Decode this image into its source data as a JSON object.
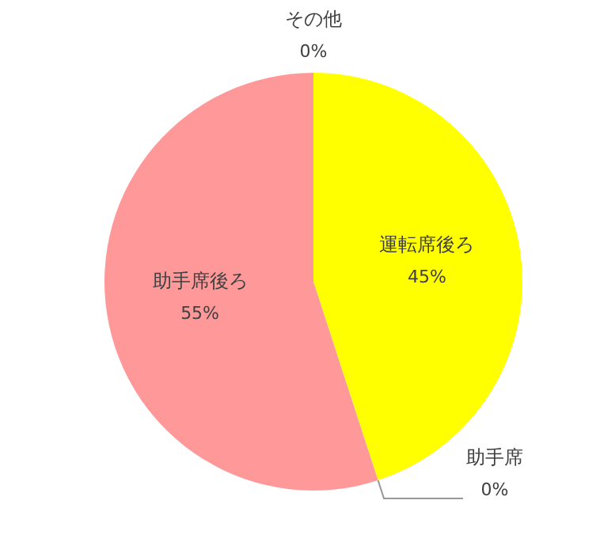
{
  "chart_data": {
    "type": "pie",
    "categories": [
      "運転席後ろ",
      "助手席",
      "助手席後ろ",
      "その他"
    ],
    "values": [
      45,
      0,
      55,
      0
    ],
    "colors": [
      "#ffff00",
      "#a5a5a5",
      "#ff9999",
      "#70ad47"
    ],
    "value_labels": [
      "45%",
      "0%",
      "55%",
      "0%"
    ],
    "legend": false
  }
}
